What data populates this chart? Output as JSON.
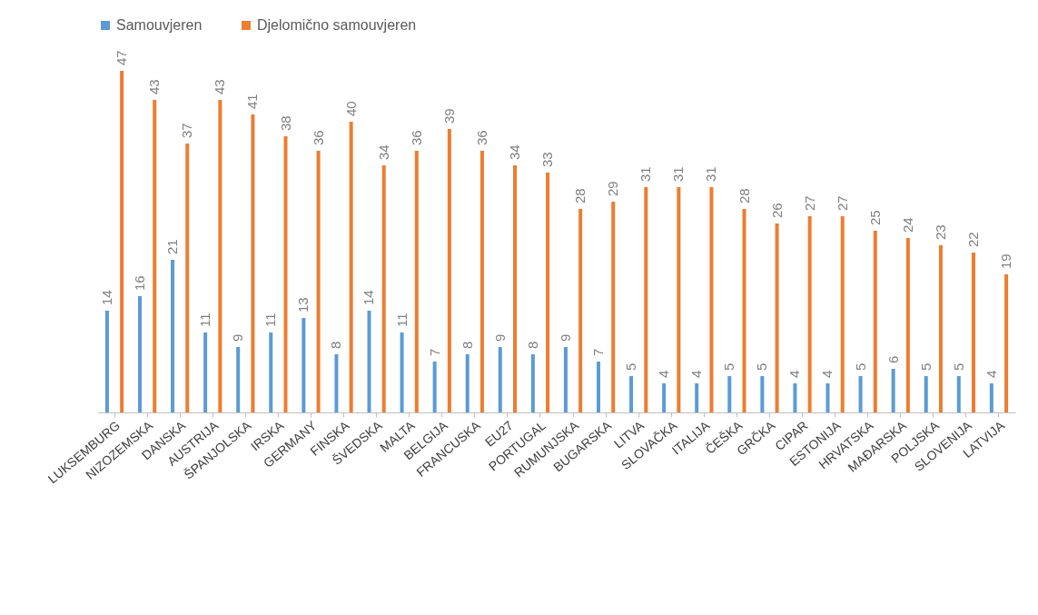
{
  "chart_data": {
    "type": "bar",
    "categories": [
      "LUKSEMBURG",
      "NIZOZEMSKA",
      "DANSKA",
      "AUSTRIJA",
      "ŠPANJOLSKA",
      "IRSKA",
      "GERMANY",
      "FINSKA",
      "ŠVEDSKA",
      "MALTA",
      "BELGIJA",
      "FRANCUSKA",
      "EU27",
      "PORTUGAL",
      "RUMUNJSKA",
      "BUGARSKA",
      "LITVA",
      "SLOVAČKA",
      "ITALIJA",
      "ČEŠKA",
      "GRČKA",
      "CIPAR",
      "ESTONIJA",
      "HRVATSKA",
      "MAĐARSKA",
      "POLJSKA",
      "SLOVENIJA",
      "LATVIJA"
    ],
    "series": [
      {
        "name": "Samouvjeren",
        "color": "#5b9bd5",
        "values": [
          14,
          16,
          21,
          11,
          9,
          11,
          13,
          8,
          14,
          11,
          7,
          8,
          9,
          8,
          9,
          7,
          5,
          4,
          4,
          5,
          5,
          4,
          4,
          5,
          6,
          5,
          5,
          4
        ]
      },
      {
        "name": "Djelomično samouvjeren",
        "color": "#ed7d31",
        "values": [
          47,
          43,
          37,
          43,
          41,
          38,
          36,
          40,
          34,
          36,
          39,
          36,
          34,
          33,
          28,
          29,
          31,
          31,
          31,
          28,
          26,
          27,
          27,
          25,
          24,
          23,
          22,
          19
        ]
      }
    ],
    "data_labels": true,
    "legend": "top",
    "grid": false
  }
}
